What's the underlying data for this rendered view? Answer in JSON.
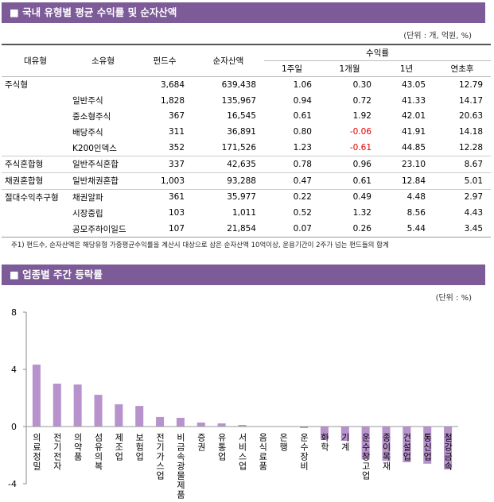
{
  "header1": "■ 국내 유형별 평균 수익률 및 순자산액",
  "unit1": "(단위 : 개, 억원, %)",
  "table": {
    "columns": [
      "대유형",
      "소유형",
      "펀드수",
      "순자산액"
    ],
    "group": "수익률",
    "subcolumns": [
      "1주일",
      "1개월",
      "1년",
      "연초후"
    ],
    "rows": [
      [
        "주식형",
        null,
        "3,684",
        "639,438",
        "1.06",
        "0.30",
        "43.05",
        "12.79"
      ],
      [
        null,
        "일반주식",
        "1,828",
        "135,967",
        "0.94",
        "0.72",
        "41.33",
        "14.17"
      ],
      [
        null,
        "중소형주식",
        "367",
        "16,545",
        "0.61",
        "1.92",
        "42.01",
        "20.63"
      ],
      [
        null,
        "배당주식",
        "311",
        "36,891",
        "0.80",
        "-0.06",
        "41.91",
        "14.18"
      ],
      [
        null,
        "K200인덱스",
        "352",
        "171,526",
        "1.23",
        "-0.61",
        "44.85",
        "12.28"
      ],
      [
        "주식혼합형",
        "일반주식혼합",
        "337",
        "42,635",
        "0.78",
        "0.96",
        "23.10",
        "8.67"
      ],
      [
        "채권혼합형",
        "일반채권혼합",
        "1,003",
        "93,288",
        "0.47",
        "0.61",
        "12.84",
        "5.01"
      ],
      [
        "절대수익추구형",
        "채권알파",
        "361",
        "35,977",
        "0.22",
        "0.49",
        "4.48",
        "2.97"
      ],
      [
        null,
        "시장중립",
        "103",
        "1,011",
        "0.52",
        "1.32",
        "8.56",
        "4.43"
      ],
      [
        null,
        "공모주하이일드",
        "107",
        "21,854",
        "0.07",
        "0.26",
        "5.44",
        "3.45"
      ]
    ]
  },
  "note": "주1) 펀드수, 순자산액은 해당유형 가중평균수익률을 계산시 대상으로 삼은 순자산액 10억이상, 운용기간이 2주가 넘는 펀드들의 합계",
  "header2": "■ 업종별 주간 등락률",
  "chart_data": {
    "type": "bar",
    "unit": "(단위 : %)",
    "categories": [
      "의료정밀",
      "전기전자",
      "의약품",
      "섬유의복",
      "제조업",
      "보험업",
      "전기가스업",
      "비금속광물제품",
      "증권",
      "유통업",
      "서비스업",
      "음식료품",
      "은행",
      "운수장비",
      "화학",
      "기계",
      "운수창고업",
      "종이목재",
      "건설업",
      "통신업",
      "철강금속"
    ],
    "values": [
      4.33,
      3.0,
      2.94,
      2.22,
      1.56,
      1.44,
      0.67,
      0.61,
      0.28,
      0.22,
      0.11,
      0.02,
      -0.01,
      -0.11,
      -0.9,
      -1.0,
      -2.3,
      -2.4,
      -2.5,
      -2.6,
      -3.0
    ],
    "color": "#b792cc",
    "ylim": [
      -4,
      8
    ],
    "yticks": [
      -4,
      0,
      4,
      8
    ]
  }
}
